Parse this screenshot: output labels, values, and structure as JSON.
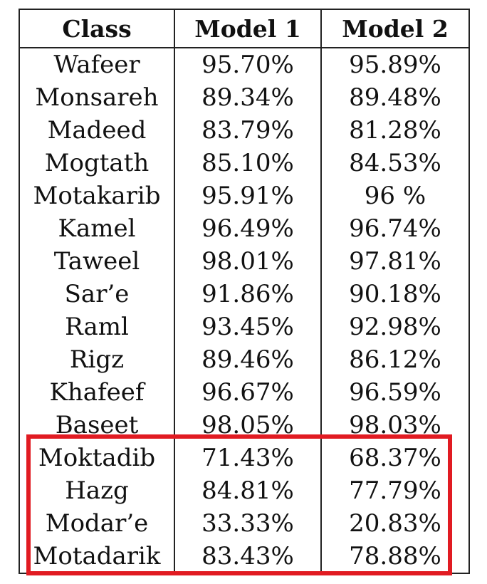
{
  "table": {
    "headers": [
      "Class",
      "Model 1",
      "Model 2"
    ],
    "rows": [
      [
        "Wafeer",
        "95.70%",
        "95.89%"
      ],
      [
        "Monsareh",
        "89.34%",
        "89.48%"
      ],
      [
        "Madeed",
        "83.79%",
        "81.28%"
      ],
      [
        "Mogtath",
        "85.10%",
        "84.53%"
      ],
      [
        "Motakarib",
        "95.91%",
        "96 %"
      ],
      [
        "Kamel",
        "96.49%",
        "96.74%"
      ],
      [
        "Taweel",
        "98.01%",
        "97.81%"
      ],
      [
        "Sar’e",
        "91.86%",
        "90.18%"
      ],
      [
        "Raml",
        "93.45%",
        "92.98%"
      ],
      [
        "Rigz",
        "89.46%",
        "86.12%"
      ],
      [
        "Khafeef",
        "96.67%",
        "96.59%"
      ],
      [
        "Baseet",
        "98.05%",
        "98.03%"
      ],
      [
        "Moktadib",
        "71.43%",
        "68.37%"
      ],
      [
        "Hazg",
        "84.81%",
        "77.79%"
      ],
      [
        "Modar’e",
        "33.33%",
        "20.83%"
      ],
      [
        "Motadarik",
        "83.43%",
        "78.88%"
      ]
    ]
  },
  "highlight": {
    "color": "#e11b22",
    "rows": [
      "Moktadib",
      "Hazg",
      "Modar’e",
      "Motadarik"
    ]
  }
}
